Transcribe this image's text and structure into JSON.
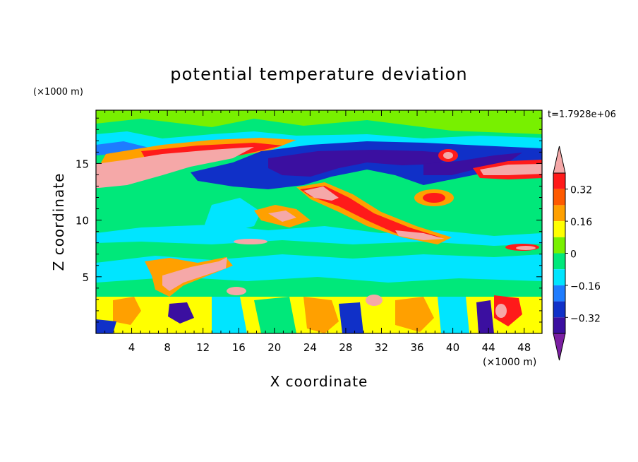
{
  "chart_data": {
    "type": "heatmap",
    "title": "potential temperature deviation",
    "time_label": "t=1.7928e+06",
    "xlabel": "X coordinate",
    "ylabel": "Z coordinate",
    "x_unit": "(×1000 m)",
    "y_unit": "(×1000 m)",
    "xlim": [
      0,
      50
    ],
    "ylim": [
      0,
      19.7
    ],
    "x_ticks": [
      "4",
      "8",
      "12",
      "16",
      "20",
      "24",
      "28",
      "32",
      "36",
      "40",
      "44",
      "48"
    ],
    "y_ticks": [
      "5",
      "10",
      "15"
    ],
    "colorbar": {
      "levels": [
        -0.4,
        -0.32,
        -0.24,
        -0.16,
        -0.08,
        0,
        0.08,
        0.16,
        0.24,
        0.32,
        0.4
      ],
      "labels": [
        "0.32",
        "0.16",
        "0",
        "−0.16",
        "−0.32"
      ],
      "colors": [
        "#7b1fa2",
        "#3b0fa0",
        "#1030c8",
        "#1e7cff",
        "#00e5ff",
        "#00e87a",
        "#78f000",
        "#ffff00",
        "#ffa000",
        "#ff5a00",
        "#ff1a1a",
        "#f5a8a8"
      ]
    },
    "field_features": [
      {
        "feature": "warm layer",
        "x": [
          0,
          16
        ],
        "z": [
          13,
          15.5
        ],
        "value": 0.45
      },
      {
        "feature": "cold layer",
        "x": [
          24,
          50
        ],
        "z": [
          13,
          16.5
        ],
        "value": -0.4
      },
      {
        "feature": "warm band",
        "x": [
          43,
          50
        ],
        "z": [
          14,
          15.5
        ],
        "value": 0.45
      },
      {
        "feature": "warm plume",
        "x": [
          22,
          40
        ],
        "z": [
          8.5,
          13
        ],
        "value": 0.4
      },
      {
        "feature": "near-surface turbulence",
        "x": [
          0,
          50
        ],
        "z": [
          0,
          5
        ],
        "value": 0.0
      }
    ]
  }
}
